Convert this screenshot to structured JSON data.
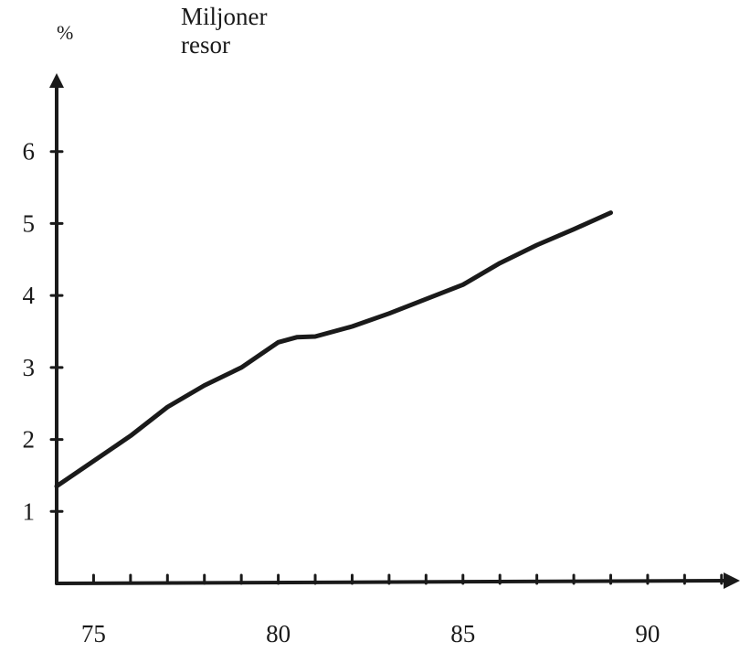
{
  "chart_data": {
    "type": "line",
    "title": "Miljoner resor",
    "title_lines": [
      "Miljoner",
      "resor"
    ],
    "ylabel": "%",
    "xlabel": "",
    "x_ticks": [
      75,
      80,
      85,
      90
    ],
    "y_ticks": [
      1,
      2,
      3,
      4,
      5,
      6
    ],
    "xlim": [
      74,
      92.5
    ],
    "ylim": [
      0,
      7
    ],
    "grid": false,
    "legend": "none",
    "series": [
      {
        "x": [
          74,
          75,
          76,
          77,
          78,
          79,
          80,
          80.5,
          81,
          82,
          83,
          84,
          85,
          86,
          87,
          88,
          89
        ],
        "y": [
          1.35,
          1.7,
          2.05,
          2.45,
          2.75,
          3.0,
          3.35,
          3.42,
          3.43,
          3.57,
          3.75,
          3.95,
          4.15,
          4.45,
          4.7,
          4.92,
          5.15
        ]
      }
    ],
    "line_color": "#1a1a1a"
  }
}
